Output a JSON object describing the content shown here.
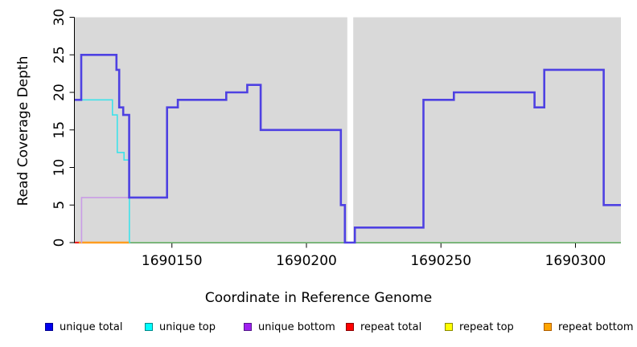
{
  "chart_data": {
    "type": "line",
    "subtype": "step-coverage",
    "title": "",
    "xlabel": "Coordinate in Reference Genome",
    "ylabel": "Read Coverage Depth",
    "xlim": [
      1690113.9,
      1690316.9
    ],
    "ylim": [
      0,
      30
    ],
    "xticks": [
      1690150,
      1690200,
      1690250,
      1690300
    ],
    "yticks": [
      0,
      5,
      10,
      15,
      20,
      25,
      30
    ],
    "grid": false,
    "plot_bg": "#d9d9d9",
    "gap_band": {
      "from": 1690215.2,
      "to": 1690217.4,
      "color": "#ffffff"
    },
    "series": [
      {
        "name": "zero baseline",
        "color": "#7ccc7c",
        "width": 1.6,
        "points": [
          [
            1690134.4,
            0
          ]
        ],
        "end": 1690316.9
      },
      {
        "name": "repeat total",
        "color": "#ee2222",
        "width": 2.2,
        "points": [
          [
            1690113.9,
            0
          ]
        ],
        "end": 1690115.6
      },
      {
        "name": "repeat bottom",
        "color": "#ff9d20",
        "width": 2.6,
        "points": [
          [
            1690115.4,
            0
          ]
        ],
        "end": 1690134.4
      },
      {
        "name": "unique bottom",
        "color": "#c99ce6",
        "width": 1.6,
        "points": [
          [
            1690116.2,
            0
          ],
          [
            1690116.4,
            6
          ]
        ],
        "end": 1690134.4
      },
      {
        "name": "unique top",
        "color": "#3fe2ea",
        "width": 1.6,
        "points": [
          [
            1690113.9,
            19
          ],
          [
            1690127.9,
            17
          ],
          [
            1690129.7,
            12
          ],
          [
            1690132.2,
            11
          ],
          [
            1690134.2,
            0
          ]
        ],
        "end": 1690134.6
      },
      {
        "name": "unique total",
        "color": "#4e41e2",
        "width": 2.6,
        "points": [
          [
            1690113.9,
            19
          ],
          [
            1690116.3,
            25
          ],
          [
            1690129.4,
            23
          ],
          [
            1690130.4,
            18
          ],
          [
            1690131.9,
            17
          ],
          [
            1690134.1,
            6
          ],
          [
            1690148.2,
            18
          ],
          [
            1690152.2,
            19
          ],
          [
            1690170.2,
            20
          ],
          [
            1690178.0,
            21
          ],
          [
            1690183.0,
            15
          ],
          [
            1690212.8,
            5
          ],
          [
            1690214.3,
            0
          ],
          [
            1690218.0,
            2
          ],
          [
            1690243.5,
            19
          ],
          [
            1690254.8,
            20
          ],
          [
            1690284.8,
            18
          ],
          [
            1690288.4,
            23
          ],
          [
            1690310.5,
            5
          ]
        ],
        "end": 1690316.9
      }
    ],
    "legend": [
      {
        "label": "unique total",
        "fill": "#0000ee",
        "border": "#000090"
      },
      {
        "label": "unique top",
        "fill": "#00ffff",
        "border": "#008b8b"
      },
      {
        "label": "unique bottom",
        "fill": "#a020f0",
        "border": "#551a8b"
      },
      {
        "label": "repeat total",
        "fill": "#ff0000",
        "border": "#8b0000"
      },
      {
        "label": "repeat top",
        "fill": "#ffff00",
        "border": "#8b8b00"
      },
      {
        "label": "repeat bottom",
        "fill": "#ffa500",
        "border": "#b05e00"
      }
    ],
    "legend_position": "bottom"
  }
}
